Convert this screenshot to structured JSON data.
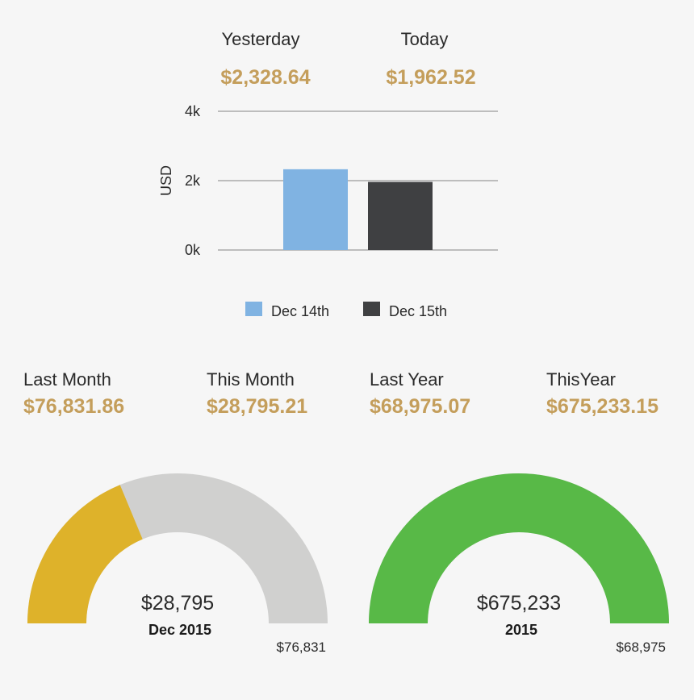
{
  "header": {
    "yesterday_label": "Yesterday",
    "yesterday_value": "$2,328.64",
    "today_label": "Today",
    "today_value": "$1,962.52"
  },
  "summary": [
    {
      "label": "Last Month",
      "value": "$76,831.86"
    },
    {
      "label": "This Month",
      "value": "$28,795.21"
    },
    {
      "label": "Last Year",
      "value": "$68,975.07"
    },
    {
      "label": "ThisYear",
      "value": "$675,233.15"
    }
  ],
  "colors": {
    "value_text": "#c49e5b",
    "dec14": "#80b3e2",
    "dec15": "#3f4042",
    "gauge_month_fill": "#deb22a",
    "gauge_track": "#d0d0cf",
    "gauge_year_fill": "#58b947",
    "grid": "#bdbdbd"
  },
  "chart_data": [
    {
      "type": "bar",
      "title": "",
      "xlabel": "",
      "ylabel": "USD",
      "ylim": [
        0,
        4000
      ],
      "yticks": [
        0,
        2000,
        4000
      ],
      "ytick_labels": [
        "0k",
        "2k",
        "4k"
      ],
      "grid": true,
      "legend_position": "bottom",
      "series": [
        {
          "name": "Dec 14th",
          "values": [
            2328.64
          ],
          "color": "#80b3e2"
        },
        {
          "name": "Dec 15th",
          "values": [
            1962.52
          ],
          "color": "#3f4042"
        }
      ]
    },
    {
      "type": "gauge",
      "value": 28795,
      "max": 76831,
      "value_label": "$28,795",
      "label": "Dec 2015",
      "max_label": "$76,831",
      "fill_color": "#deb22a",
      "track_color": "#d0d0cf"
    },
    {
      "type": "gauge",
      "value": 675233,
      "max": 68975,
      "value_label": "$675,233",
      "label": "2015",
      "max_label": "$68,975",
      "fill_color": "#58b947",
      "track_color": "#d0d0cf"
    }
  ]
}
